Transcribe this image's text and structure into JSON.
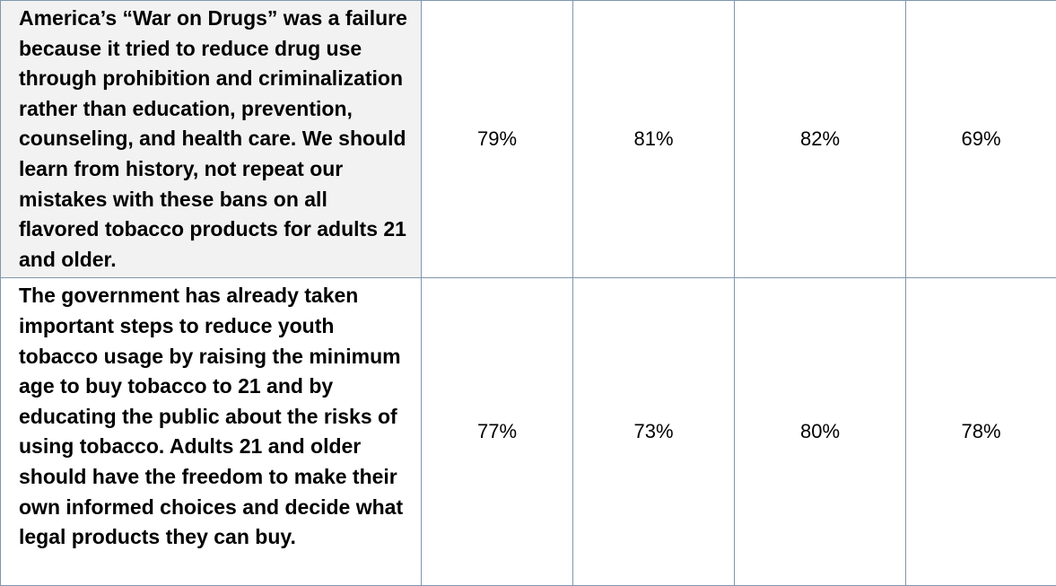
{
  "table": {
    "rows": [
      {
        "statement": "America’s “War on Drugs” was a failure because it tried to reduce drug use through prohibition and criminalization rather than education, prevention, counseling, and health care. We should learn from history, not repeat our mistakes with these bans on all flavored tobacco products for adults 21 and older.",
        "values": [
          "79%",
          "81%",
          "82%",
          "69%"
        ]
      },
      {
        "statement": "The government has already taken important steps to reduce youth tobacco usage by raising the minimum age to buy tobacco to 21 and by educating the public about the risks of using tobacco. Adults 21 and older should have the freedom to make their own informed choices and decide what legal products they can buy.",
        "values": [
          "77%",
          "73%",
          "80%",
          "78%"
        ]
      }
    ]
  }
}
